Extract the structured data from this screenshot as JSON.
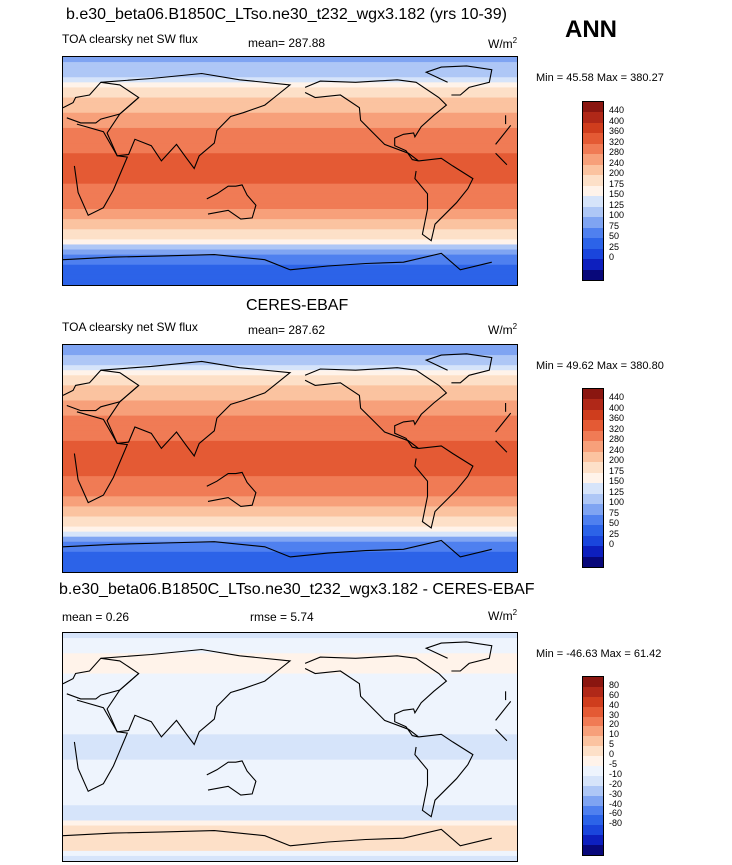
{
  "season": "ANN",
  "colors": {
    "abs_scale": [
      "#08087a",
      "#0d1fbe",
      "#1a45dc",
      "#2c63e8",
      "#4f80ef",
      "#7fa4f2",
      "#aec7f6",
      "#d6e4fa",
      "#fff3ea",
      "#fde0c8",
      "#fbc3a0",
      "#f7a07a",
      "#f07b55",
      "#e45a34",
      "#cf3d1d",
      "#b02818",
      "#8a1610"
    ],
    "diff_scale": [
      "#08087a",
      "#0d1fbe",
      "#1a45dc",
      "#2c63e8",
      "#4f80ef",
      "#7fa4f2",
      "#aec7f6",
      "#d6e4fa",
      "#eef4fd",
      "#fff3ea",
      "#fde0c8",
      "#fbc3a0",
      "#f7a07a",
      "#f07b55",
      "#e45a34",
      "#cf3d1d",
      "#b02818",
      "#8a1610"
    ],
    "land_outline": "#000000"
  },
  "panels": [
    {
      "title": "b.e30_beta06.B1850C_LTso.ne30_t232_wgx3.182 (yrs 10-39)",
      "variable": "TOA clearsky net SW flux",
      "mean_label": "mean= 287.88",
      "units_base": "W/m",
      "units_exp": "2",
      "minmax": "Min =  45.58 Max = 380.27",
      "levels": [
        "440",
        "400",
        "360",
        "320",
        "280",
        "240",
        "200",
        "175",
        "150",
        "125",
        "100",
        "75",
        "50",
        "25",
        "0"
      ]
    },
    {
      "title": "CERES-EBAF",
      "variable": "TOA clearsky net SW flux",
      "mean_label": "mean= 287.62",
      "units_base": "W/m",
      "units_exp": "2",
      "minmax": "Min =  49.62 Max = 380.80",
      "levels": [
        "440",
        "400",
        "360",
        "320",
        "280",
        "240",
        "200",
        "175",
        "150",
        "125",
        "100",
        "75",
        "50",
        "25",
        "0"
      ]
    },
    {
      "title": "b.e30_beta06.B1850C_LTso.ne30_t232_wgx3.182 - CERES-EBAF",
      "mean_label": "mean =   0.26",
      "rmse_label": "rmse =   5.74",
      "units_base": "W/m",
      "units_exp": "2",
      "minmax": "Min = -46.63 Max =  61.42",
      "levels": [
        "80",
        "60",
        "40",
        "30",
        "20",
        "10",
        "5",
        "0",
        "-5",
        "-10",
        "-20",
        "-30",
        "-40",
        "-60",
        "-80"
      ]
    }
  ],
  "chart_data": [
    {
      "type": "heatmap",
      "title": "b.e30_beta06.B1850C_LTso.ne30_t232_wgx3.182 (yrs 10-39)",
      "variable": "TOA clearsky net SW flux",
      "units": "W/m2",
      "mean": 287.88,
      "min": 45.58,
      "max": 380.27,
      "contour_levels": [
        0,
        25,
        50,
        75,
        100,
        125,
        150,
        175,
        200,
        240,
        280,
        320,
        360,
        400,
        440
      ],
      "x_range": [
        0,
        360
      ],
      "y_range": [
        -90,
        90
      ],
      "zonal_mean_profile": {
        "lat": [
          90,
          75,
          65,
          55,
          45,
          35,
          25,
          15,
          5,
          -5,
          -15,
          -25,
          -35,
          -45,
          -55,
          -65,
          -75,
          -90
        ],
        "value": [
          120,
          150,
          210,
          255,
          290,
          315,
          340,
          360,
          370,
          370,
          355,
          335,
          300,
          250,
          185,
          110,
          60,
          50
        ]
      }
    },
    {
      "type": "heatmap",
      "title": "CERES-EBAF",
      "variable": "TOA clearsky net SW flux",
      "units": "W/m2",
      "mean": 287.62,
      "min": 49.62,
      "max": 380.8,
      "contour_levels": [
        0,
        25,
        50,
        75,
        100,
        125,
        150,
        175,
        200,
        240,
        280,
        320,
        360,
        400,
        440
      ],
      "x_range": [
        0,
        360
      ],
      "y_range": [
        -90,
        90
      ],
      "zonal_mean_profile": {
        "lat": [
          90,
          75,
          65,
          55,
          45,
          35,
          25,
          15,
          5,
          -5,
          -15,
          -25,
          -35,
          -45,
          -55,
          -65,
          -75,
          -90
        ],
        "value": [
          110,
          140,
          200,
          250,
          285,
          312,
          340,
          360,
          372,
          372,
          358,
          338,
          302,
          250,
          185,
          115,
          60,
          50
        ]
      }
    },
    {
      "type": "heatmap",
      "title": "b.e30_beta06.B1850C_LTso.ne30_t232_wgx3.182 - CERES-EBAF",
      "units": "W/m2",
      "mean": 0.26,
      "rmse": 5.74,
      "min": -46.63,
      "max": 61.42,
      "contour_levels": [
        -80,
        -60,
        -40,
        -30,
        -20,
        -10,
        -5,
        0,
        5,
        10,
        20,
        30,
        40,
        60,
        80
      ],
      "x_range": [
        0,
        360
      ],
      "y_range": [
        -90,
        90
      ],
      "zonal_mean_profile": {
        "lat": [
          90,
          75,
          65,
          55,
          45,
          35,
          25,
          15,
          5,
          -5,
          -15,
          -25,
          -35,
          -45,
          -55,
          -65,
          -75,
          -90
        ],
        "value": [
          -3,
          5,
          8,
          4,
          2,
          3,
          4,
          2,
          -2,
          -2,
          1,
          2,
          3,
          1,
          -5,
          15,
          20,
          -8
        ]
      }
    }
  ]
}
